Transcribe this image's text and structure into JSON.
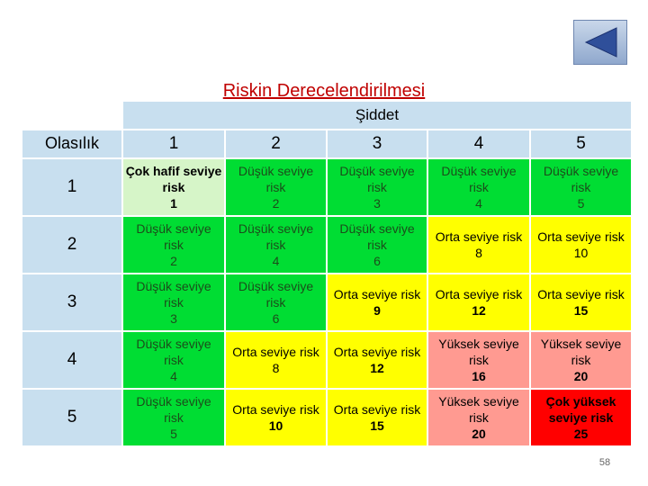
{
  "title": "Riskin Derecelendirilmesi",
  "severity_label": "Şiddet",
  "probability_label": "Olasılık",
  "severity_levels": [
    "1",
    "2",
    "3",
    "4",
    "5"
  ],
  "probability_levels": [
    "1",
    "2",
    "3",
    "4",
    "5"
  ],
  "matrix": [
    [
      {
        "label": "Çok hafif seviye risk",
        "value": "1"
      },
      {
        "label": "Düşük seviye risk",
        "value": "2"
      },
      {
        "label": "Düşük seviye risk",
        "value": "3"
      },
      {
        "label": "Düşük seviye risk",
        "value": "4"
      },
      {
        "label": "Düşük seviye risk",
        "value": "5"
      }
    ],
    [
      {
        "label": "Düşük seviye risk",
        "value": "2"
      },
      {
        "label": "Düşük seviye risk",
        "value": "4"
      },
      {
        "label": "Düşük seviye risk",
        "value": "6"
      },
      {
        "label": "Orta seviye risk",
        "value": "8"
      },
      {
        "label": "Orta seviye risk",
        "value": "10"
      }
    ],
    [
      {
        "label": "Düşük seviye risk",
        "value": "3"
      },
      {
        "label": "Düşük seviye risk",
        "value": "6"
      },
      {
        "label": "Orta seviye risk",
        "value": "9"
      },
      {
        "label": "Orta seviye risk",
        "value": "12"
      },
      {
        "label": "Orta seviye risk",
        "value": "15"
      }
    ],
    [
      {
        "label": "Düşük seviye risk",
        "value": "4"
      },
      {
        "label": "Orta seviye risk",
        "value": "8"
      },
      {
        "label": "Orta seviye risk",
        "value": "12"
      },
      {
        "label": "Yüksek seviye risk",
        "value": "16"
      },
      {
        "label": "Yüksek seviye risk",
        "value": "20"
      }
    ],
    [
      {
        "label": "Düşük seviye risk",
        "value": "5"
      },
      {
        "label": "Orta seviye risk",
        "value": "10"
      },
      {
        "label": "Orta seviye risk",
        "value": "15"
      },
      {
        "label": "Yüksek seviye risk",
        "value": "20"
      },
      {
        "label": "Çok yüksek seviye risk",
        "value": "25"
      }
    ]
  ],
  "colors": {
    "header": "#c8dfef",
    "very_low": "#d6f5c8",
    "low": "#00dd33",
    "medium": "#ffff00",
    "high": "#ff9a91",
    "very_high": "#ff0000",
    "title": "#c00000"
  },
  "nav": {
    "icon": "back-triangle-icon"
  },
  "page_number": "58"
}
